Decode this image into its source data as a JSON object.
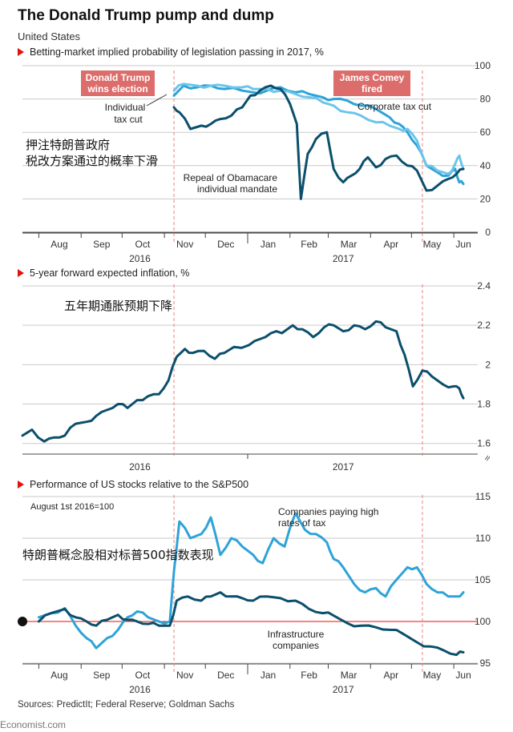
{
  "title": "The Donald Trump pump and dump",
  "subtitle": "United States",
  "sources": "Sources: PredictIt; Federal Reserve; Goldman Sachs",
  "site": "Economist.com",
  "colors": {
    "dark_series": "#0b4f6c",
    "light_series": "#2ea3d8",
    "lighter_series": "#6cc5ea",
    "accent_red": "#e3120b",
    "event_box": "#dc6d6b",
    "event_line": "#e8827f",
    "grid": "#c9c9c9"
  },
  "months": [
    "Aug",
    "Sep",
    "Oct",
    "Nov",
    "Dec",
    "Jan",
    "Feb",
    "Mar",
    "Apr",
    "May",
    "Jun"
  ],
  "years": [
    "2016",
    "2017"
  ],
  "events": [
    {
      "label_line1": "Donald Trump",
      "label_line2": "wins election",
      "date": "2016-11-08"
    },
    {
      "label_line1": "James Comey",
      "label_line2": "fired",
      "date": "2017-05-09"
    }
  ],
  "chart_data": [
    {
      "type": "line",
      "title": "Betting-market implied probability of legislation passing in 2017, %",
      "annotation_cn": "押注特朗普政府税改方案通过的概率下滑",
      "annotation_cn_line1": "押注特朗普政府",
      "annotation_cn_line2": "税改方案通过的概率下滑",
      "ylim": [
        0,
        100
      ],
      "yticks": [
        0,
        20,
        40,
        60,
        80,
        100
      ],
      "x_range": [
        "2016-07-20",
        "2017-06-15"
      ],
      "series": [
        {
          "name": "Corporate tax cut",
          "color_key": "light_series",
          "x": [
            "2016-11-08",
            "2016-11-15",
            "2016-11-25",
            "2016-12-05",
            "2016-12-15",
            "2016-12-28",
            "2017-01-05",
            "2017-01-15",
            "2017-01-25",
            "2017-02-05",
            "2017-02-15",
            "2017-02-25",
            "2017-03-05",
            "2017-03-15",
            "2017-03-25",
            "2017-04-05",
            "2017-04-15",
            "2017-04-22",
            "2017-04-28",
            "2017-05-05",
            "2017-05-12",
            "2017-05-20",
            "2017-05-28",
            "2017-06-02",
            "2017-06-05",
            "2017-06-08"
          ],
          "values": [
            82,
            88,
            87,
            88,
            86,
            85,
            84,
            85,
            87,
            84,
            83,
            81,
            80,
            79,
            76,
            74,
            69,
            65,
            60,
            52,
            40,
            36,
            34,
            38,
            30,
            29
          ]
        },
        {
          "name": "Individual tax cut",
          "color_key": "lighter_series",
          "x": [
            "2016-11-08",
            "2016-11-15",
            "2016-11-25",
            "2016-12-05",
            "2016-12-15",
            "2016-12-28",
            "2017-01-05",
            "2017-01-15",
            "2017-01-25",
            "2017-02-05",
            "2017-02-15",
            "2017-02-25",
            "2017-03-05",
            "2017-03-15",
            "2017-03-25",
            "2017-04-05",
            "2017-04-15",
            "2017-04-22",
            "2017-04-28",
            "2017-05-05",
            "2017-05-12",
            "2017-05-20",
            "2017-05-28",
            "2017-06-02",
            "2017-06-05",
            "2017-06-08"
          ],
          "values": [
            85,
            89,
            88,
            88,
            88,
            87,
            86,
            86,
            85,
            83,
            81,
            78,
            76,
            72,
            70,
            66,
            64,
            62,
            62,
            55,
            40,
            37,
            35,
            41,
            46,
            38
          ]
        },
        {
          "name": "Repeal of Obamacare individual mandate",
          "color_key": "dark_series",
          "x": [
            "2016-11-08",
            "2016-11-12",
            "2016-11-20",
            "2016-11-28",
            "2016-12-05",
            "2016-12-12",
            "2016-12-20",
            "2016-12-28",
            "2017-01-03",
            "2017-01-10",
            "2017-01-18",
            "2017-01-25",
            "2017-02-01",
            "2017-02-06",
            "2017-02-09",
            "2017-02-14",
            "2017-02-20",
            "2017-02-28",
            "2017-03-05",
            "2017-03-12",
            "2017-03-18",
            "2017-03-24",
            "2017-03-30",
            "2017-04-05",
            "2017-04-12",
            "2017-04-20",
            "2017-04-28",
            "2017-05-05",
            "2017-05-12",
            "2017-05-20",
            "2017-05-28",
            "2017-06-03",
            "2017-06-08"
          ],
          "values": [
            75,
            72,
            62,
            64,
            65,
            68,
            70,
            75,
            82,
            85,
            88,
            86,
            77,
            65,
            20,
            47,
            56,
            60,
            38,
            30,
            34,
            38,
            45,
            39,
            44,
            46,
            40,
            37,
            25,
            28,
            32,
            35,
            38
          ]
        }
      ],
      "annotations": [
        {
          "text_line1": "Individual",
          "text_line2": "tax cut"
        },
        {
          "text": "Corporate tax cut"
        },
        {
          "text_line1": "Repeal of Obamacare",
          "text_line2": "individual mandate"
        }
      ]
    },
    {
      "type": "line",
      "title": "5-year forward expected inflation, %",
      "annotation_cn": "五年期通胀预期下降",
      "ylim": [
        1.55,
        2.4
      ],
      "yticks": [
        1.6,
        1.8,
        2.0,
        2.2,
        2.4
      ],
      "x_range": [
        "2016-07-20",
        "2017-06-15"
      ],
      "series": [
        {
          "name": "",
          "color_key": "dark_series",
          "x": [
            "2016-07-20",
            "2016-07-27",
            "2016-08-05",
            "2016-08-12",
            "2016-08-20",
            "2016-08-28",
            "2016-09-05",
            "2016-09-12",
            "2016-09-20",
            "2016-09-28",
            "2016-10-05",
            "2016-10-12",
            "2016-10-20",
            "2016-10-28",
            "2016-11-04",
            "2016-11-10",
            "2016-11-16",
            "2016-11-22",
            "2016-11-30",
            "2016-12-08",
            "2016-12-15",
            "2016-12-22",
            "2017-01-02",
            "2017-01-10",
            "2017-01-18",
            "2017-01-26",
            "2017-02-03",
            "2017-02-10",
            "2017-02-18",
            "2017-02-26",
            "2017-03-05",
            "2017-03-12",
            "2017-03-20",
            "2017-03-28",
            "2017-04-05",
            "2017-04-12",
            "2017-04-20",
            "2017-04-26",
            "2017-05-02",
            "2017-05-09",
            "2017-05-16",
            "2017-05-24",
            "2017-06-01",
            "2017-06-05",
            "2017-06-08"
          ],
          "values": [
            1.64,
            1.67,
            1.61,
            1.63,
            1.64,
            1.7,
            1.71,
            1.74,
            1.77,
            1.8,
            1.78,
            1.82,
            1.84,
            1.85,
            1.92,
            2.04,
            2.08,
            2.06,
            2.07,
            2.03,
            2.06,
            2.09,
            2.1,
            2.13,
            2.16,
            2.16,
            2.2,
            2.18,
            2.14,
            2.19,
            2.2,
            2.17,
            2.2,
            2.18,
            2.22,
            2.19,
            2.17,
            2.05,
            1.89,
            1.97,
            1.94,
            1.9,
            1.89,
            1.88,
            1.83
          ]
        }
      ]
    },
    {
      "type": "line",
      "title": "Performance of US stocks relative to the S&P500",
      "base_note": "August 1st 2016=100",
      "annotation_cn": "特朗普概念股相对标普500指数表现",
      "ylim": [
        95,
        115
      ],
      "yticks": [
        95,
        100,
        105,
        110,
        115
      ],
      "x_range": [
        "2016-07-20",
        "2017-06-15"
      ],
      "series": [
        {
          "name": "Companies paying high rates of tax",
          "color_key": "light_series",
          "x": [
            "2016-08-01",
            "2016-08-10",
            "2016-08-20",
            "2016-08-28",
            "2016-09-05",
            "2016-09-12",
            "2016-09-20",
            "2016-09-28",
            "2016-10-05",
            "2016-10-12",
            "2016-10-20",
            "2016-10-28",
            "2016-11-05",
            "2016-11-08",
            "2016-11-12",
            "2016-11-20",
            "2016-11-28",
            "2016-12-05",
            "2016-12-12",
            "2016-12-20",
            "2016-12-28",
            "2017-01-05",
            "2017-01-12",
            "2017-01-20",
            "2017-01-28",
            "2017-02-05",
            "2017-02-12",
            "2017-02-20",
            "2017-02-28",
            "2017-03-05",
            "2017-03-12",
            "2017-03-20",
            "2017-03-28",
            "2017-04-05",
            "2017-04-12",
            "2017-04-20",
            "2017-04-28",
            "2017-05-05",
            "2017-05-12",
            "2017-05-20",
            "2017-05-28",
            "2017-06-03",
            "2017-06-08"
          ],
          "values": [
            100.5,
            101,
            101.6,
            99.5,
            98,
            96.8,
            98,
            99,
            100.5,
            101.2,
            100.5,
            100,
            100,
            106,
            112,
            110,
            110.5,
            112.5,
            108,
            110,
            109,
            108,
            107,
            110,
            109,
            113,
            111,
            110.5,
            109.5,
            107.5,
            106.5,
            104.5,
            103.5,
            104,
            103,
            105,
            106.5,
            106.5,
            104.5,
            103.5,
            103,
            103,
            103.5
          ]
        },
        {
          "name": "Infrastructure companies",
          "color_key": "dark_series",
          "x": [
            "2016-08-01",
            "2016-08-10",
            "2016-08-20",
            "2016-08-28",
            "2016-09-05",
            "2016-09-12",
            "2016-09-20",
            "2016-09-28",
            "2016-10-05",
            "2016-10-12",
            "2016-10-20",
            "2016-10-28",
            "2016-11-05",
            "2016-11-10",
            "2016-11-18",
            "2016-11-28",
            "2016-12-05",
            "2016-12-12",
            "2016-12-20",
            "2016-12-28",
            "2017-01-05",
            "2017-01-15",
            "2017-01-25",
            "2017-02-05",
            "2017-02-15",
            "2017-02-25",
            "2017-03-05",
            "2017-03-15",
            "2017-03-25",
            "2017-04-05",
            "2017-04-15",
            "2017-04-25",
            "2017-05-05",
            "2017-05-15",
            "2017-05-25",
            "2017-06-03",
            "2017-06-08"
          ],
          "values": [
            100,
            101,
            101.5,
            100.5,
            100,
            99.5,
            100.2,
            100.8,
            100.2,
            100,
            99.7,
            99.5,
            99.5,
            102.5,
            103,
            102.5,
            103,
            103.5,
            103,
            102.8,
            102.5,
            103,
            102.8,
            102.5,
            101.5,
            101,
            100.7,
            99.8,
            99.5,
            99.3,
            99,
            98.5,
            97.5,
            97,
            96.5,
            96,
            96.3
          ]
        }
      ]
    }
  ]
}
